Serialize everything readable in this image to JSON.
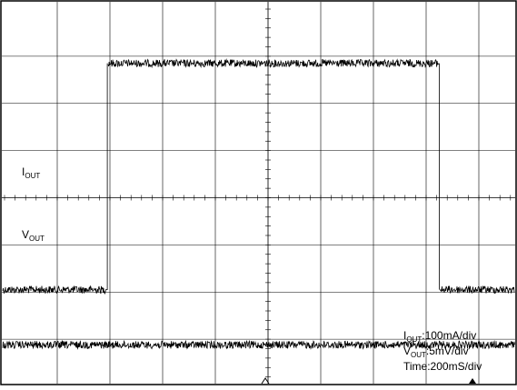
{
  "chart_data": {
    "type": "line",
    "grid": "on",
    "x_divisions": 10,
    "y_divisions": 8,
    "series": [
      {
        "name": "IOUT",
        "label_main": "I",
        "label_sub": "OUT",
        "low_level_div": 5.95,
        "high_level_div": 1.15,
        "step_up_x_div": 1.95,
        "step_down_x_div": 8.25,
        "noise_div": 0.08
      },
      {
        "name": "VOUT",
        "label_main": "V",
        "label_sub": "OUT",
        "level_div": 7.12,
        "noise_div": 0.08
      }
    ],
    "scale_labels": [
      {
        "main": "I",
        "sub": "OUT",
        "rest": ":100mA/div"
      },
      {
        "main": "V",
        "sub": "OUT",
        "rest": ":5mV/div"
      },
      {
        "main": "",
        "sub": "",
        "rest": "Time:200mS/div"
      }
    ]
  },
  "colors": {
    "trace": "#000000",
    "grid": "#000000",
    "background": "#ffffff"
  }
}
